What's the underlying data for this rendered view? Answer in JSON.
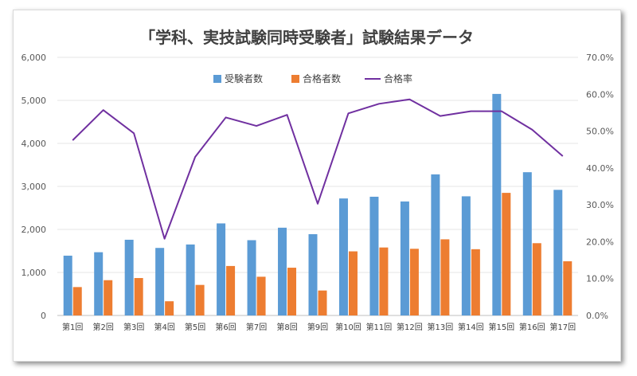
{
  "chart_data": {
    "type": "bar",
    "title": "「学科、実技試験同時受験者」試験結果データ",
    "categories": [
      "第1回",
      "第2回",
      "第3回",
      "第4回",
      "第5回",
      "第6回",
      "第7回",
      "第8回",
      "第9回",
      "第10回",
      "第11回",
      "第12回",
      "第13回",
      "第14回",
      "第15回",
      "第16回",
      "第17回"
    ],
    "series": [
      {
        "name": "受験者数",
        "kind": "bar",
        "axis": "left",
        "color": "#5b9bd5",
        "values": [
          1390,
          1470,
          1760,
          1570,
          1650,
          2140,
          1750,
          2040,
          1890,
          2720,
          2760,
          2650,
          3280,
          2770,
          5150,
          3330,
          2920
        ]
      },
      {
        "name": "合格者数",
        "kind": "bar",
        "axis": "left",
        "color": "#ed7d31",
        "values": [
          660,
          820,
          870,
          330,
          710,
          1150,
          900,
          1110,
          580,
          1490,
          1580,
          1550,
          1770,
          1540,
          2850,
          1680,
          1260
        ]
      },
      {
        "name": "合格率",
        "kind": "line",
        "axis": "right",
        "color": "#7030a0",
        "values": [
          47.5,
          55.7,
          49.4,
          20.8,
          43.0,
          53.7,
          51.4,
          54.4,
          30.3,
          54.8,
          57.4,
          58.6,
          54.1,
          55.4,
          55.4,
          50.4,
          43.2
        ]
      }
    ],
    "yticks_left": [
      "0",
      "1,000",
      "2,000",
      "3,000",
      "4,000",
      "5,000",
      "6,000"
    ],
    "yticks_right": [
      "0.0%",
      "10.0%",
      "20.0%",
      "30.0%",
      "40.0%",
      "50.0%",
      "60.0%",
      "70.0%"
    ],
    "ylim_left": [
      0,
      6000
    ],
    "ylim_right": [
      0,
      70
    ],
    "grid": true,
    "legend_position": "top"
  }
}
